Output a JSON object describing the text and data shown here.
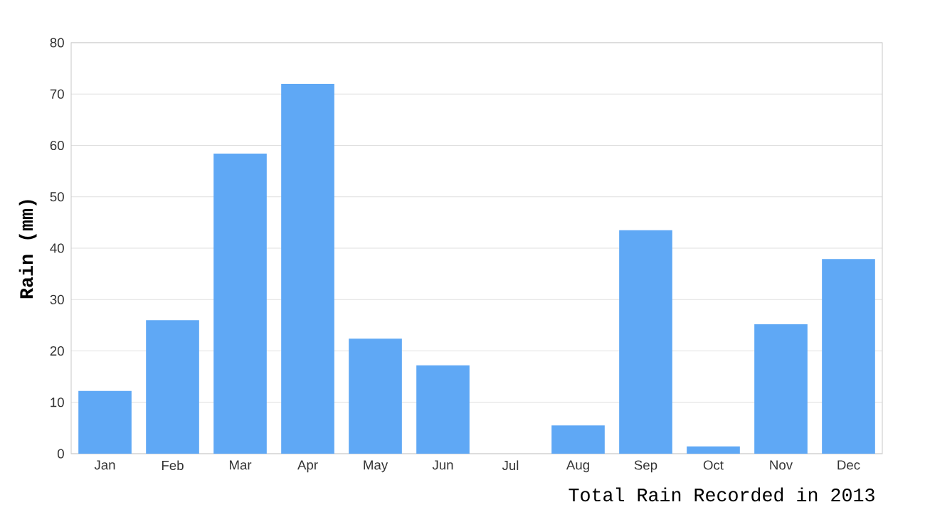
{
  "chart_data": {
    "type": "bar",
    "ylabel": "Rain (mm)",
    "categories": [
      "Jan",
      "Feb",
      "Mar",
      "Apr",
      "May",
      "Jun",
      "Jul",
      "Aug",
      "Sep",
      "Oct",
      "Nov",
      "Dec"
    ],
    "values": [
      12.2,
      26.0,
      58.4,
      72.0,
      22.4,
      17.2,
      0,
      5.5,
      43.5,
      1.4,
      25.2,
      37.9
    ],
    "color": "#5fa8f5",
    "ylim": [
      0,
      80
    ],
    "yticks": [
      0,
      10,
      20,
      30,
      40,
      50,
      60,
      70,
      80
    ],
    "grid": "y",
    "annotations": [
      "Total Rain Recorded in 2013"
    ]
  }
}
